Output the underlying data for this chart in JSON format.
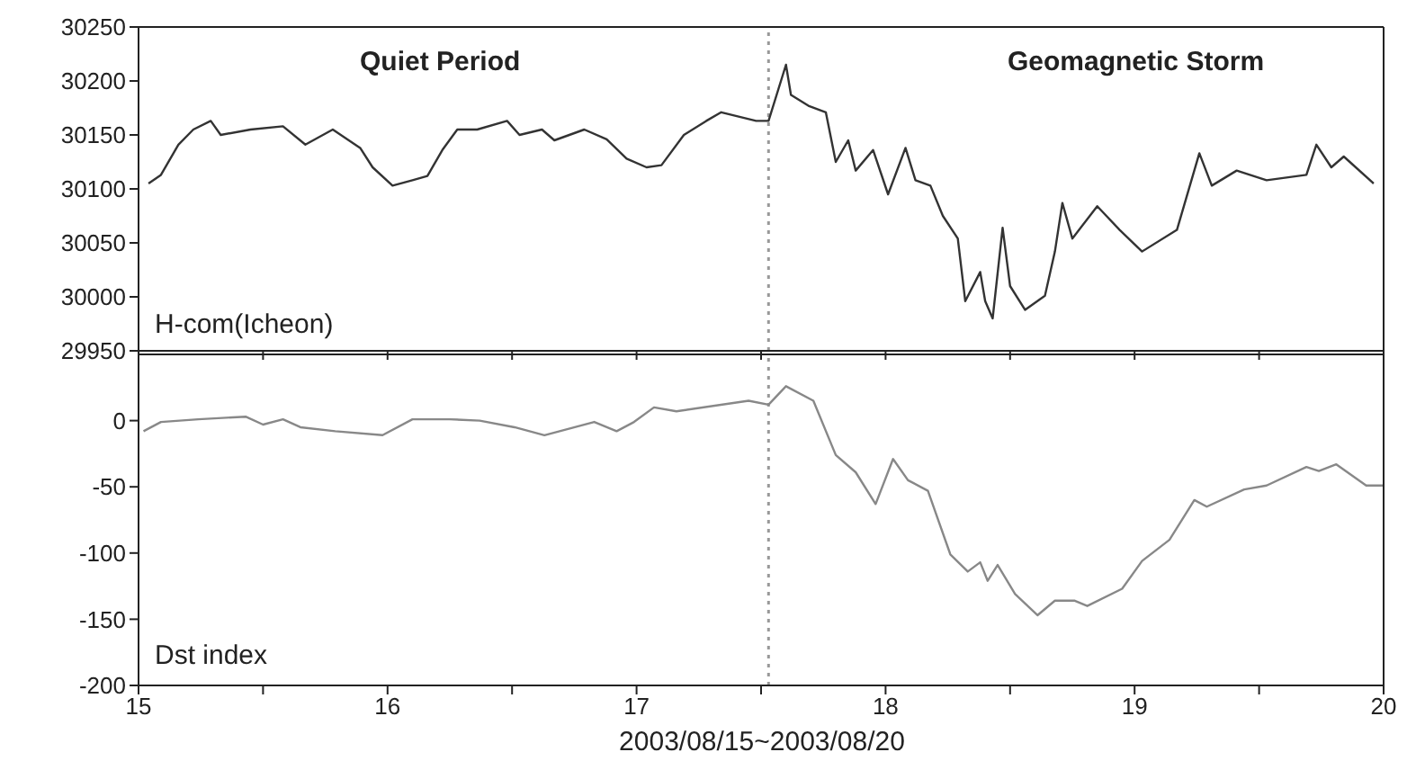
{
  "chart_data": [
    {
      "type": "line",
      "annotations": [
        "Quiet Period",
        "Geomagnetic Storm",
        "H-com(Icheon)"
      ],
      "tick_labels": "y",
      "x": [
        15.04,
        15.09,
        15.16,
        15.22,
        15.29,
        15.33,
        15.45,
        15.58,
        15.67,
        15.78,
        15.89,
        15.94,
        16.02,
        16.1,
        16.16,
        16.22,
        16.28,
        16.36,
        16.48,
        16.53,
        16.62,
        16.67,
        16.79,
        16.88,
        16.96,
        17.04,
        17.1,
        17.19,
        17.28,
        17.34,
        17.48,
        17.53,
        17.6,
        17.62,
        17.69,
        17.76,
        17.8,
        17.85,
        17.88,
        17.95,
        18.01,
        18.08,
        18.12,
        18.18,
        18.23,
        18.29,
        18.32,
        18.38,
        18.4,
        18.43,
        18.47,
        18.5,
        18.56,
        18.64,
        18.68,
        18.71,
        18.75,
        18.85,
        18.94,
        19.03,
        19.17,
        19.26,
        19.31,
        19.41,
        19.53,
        19.69,
        19.73,
        19.79,
        19.84,
        19.96
      ],
      "series": [
        {
          "color": "#333333",
          "values": [
            30105,
            30113,
            30141,
            30155,
            30163,
            30150,
            30155,
            30158,
            30141,
            30155,
            30138,
            30120,
            30103,
            30108,
            30112,
            30136,
            30155,
            30155,
            30163,
            30150,
            30155,
            30145,
            30155,
            30146,
            30128,
            30120,
            30122,
            30150,
            30163,
            30171,
            30163,
            30163,
            30215,
            30187,
            30177,
            30171,
            30125,
            30145,
            30117,
            30136,
            30095,
            30138,
            30108,
            30103,
            30075,
            30054,
            29996,
            30023,
            29996,
            29980,
            30064,
            30010,
            29988,
            30001,
            30042,
            30087,
            30054,
            30084,
            30062,
            30042,
            30062,
            30133,
            30103,
            30117,
            30108,
            30113,
            30141,
            30120,
            30130,
            30105
          ]
        }
      ],
      "xlim": [
        15,
        20
      ],
      "xticks": [
        15,
        {
          "value": 15.5,
          "label": null
        },
        16,
        {
          "value": 16.5,
          "label": null
        },
        17,
        {
          "value": 17.5,
          "label": null
        },
        18,
        {
          "value": 18.5,
          "label": null
        },
        19,
        {
          "value": 19.5,
          "label": null
        },
        20
      ],
      "ylim": [
        29950,
        30250
      ],
      "yticks": [
        29950,
        30000,
        30050,
        30100,
        30150,
        30200,
        30250
      ],
      "ref_lines": [
        {
          "axis": "x",
          "value": 17.53,
          "color": "#999999",
          "line_style": "dotted"
        }
      ]
    },
    {
      "type": "line",
      "annotations": [
        "Dst index"
      ],
      "xlabel": "2003/08/15~2003/08/20",
      "x": [
        15.02,
        15.09,
        15.24,
        15.43,
        15.5,
        15.58,
        15.65,
        15.79,
        15.98,
        16.1,
        16.25,
        16.37,
        16.51,
        16.63,
        16.83,
        16.92,
        16.99,
        17.07,
        17.16,
        17.45,
        17.53,
        17.6,
        17.71,
        17.8,
        17.88,
        17.96,
        18.03,
        18.09,
        18.17,
        18.26,
        18.33,
        18.38,
        18.41,
        18.45,
        18.52,
        18.61,
        18.68,
        18.76,
        18.81,
        18.95,
        19.03,
        19.14,
        19.24,
        19.29,
        19.44,
        19.53,
        19.69,
        19.74,
        19.81,
        19.93,
        20
      ],
      "series": [
        {
          "color": "#888888",
          "values": [
            -8,
            -1,
            1,
            3,
            -3,
            1,
            -5,
            -8,
            -11,
            1,
            1,
            0,
            -5,
            -11,
            -1,
            -8,
            -1,
            10,
            7,
            15,
            12,
            26,
            15,
            -26,
            -39,
            -63,
            -29,
            -45,
            -53,
            -101,
            -114,
            -107,
            -121,
            -109,
            -131,
            -147,
            -136,
            -136,
            -140,
            -127,
            -106,
            -90,
            -60,
            -65,
            -52,
            -49,
            -35,
            -38,
            -33,
            -49,
            -49
          ]
        }
      ],
      "xlim": [
        15,
        20
      ],
      "xticks": [
        15,
        {
          "value": 15.5,
          "label": null
        },
        16,
        {
          "value": 16.5,
          "label": null
        },
        17,
        {
          "value": 17.5,
          "label": null
        },
        18,
        {
          "value": 18.5,
          "label": null
        },
        19,
        {
          "value": 19.5,
          "label": null
        },
        20
      ],
      "ylim": [
        -200,
        50
      ],
      "yticks": [
        -200,
        -150,
        -100,
        -50,
        0
      ],
      "ref_lines": [
        {
          "axis": "x",
          "value": 17.53,
          "color": "#999999",
          "line_style": "dotted"
        }
      ]
    }
  ]
}
